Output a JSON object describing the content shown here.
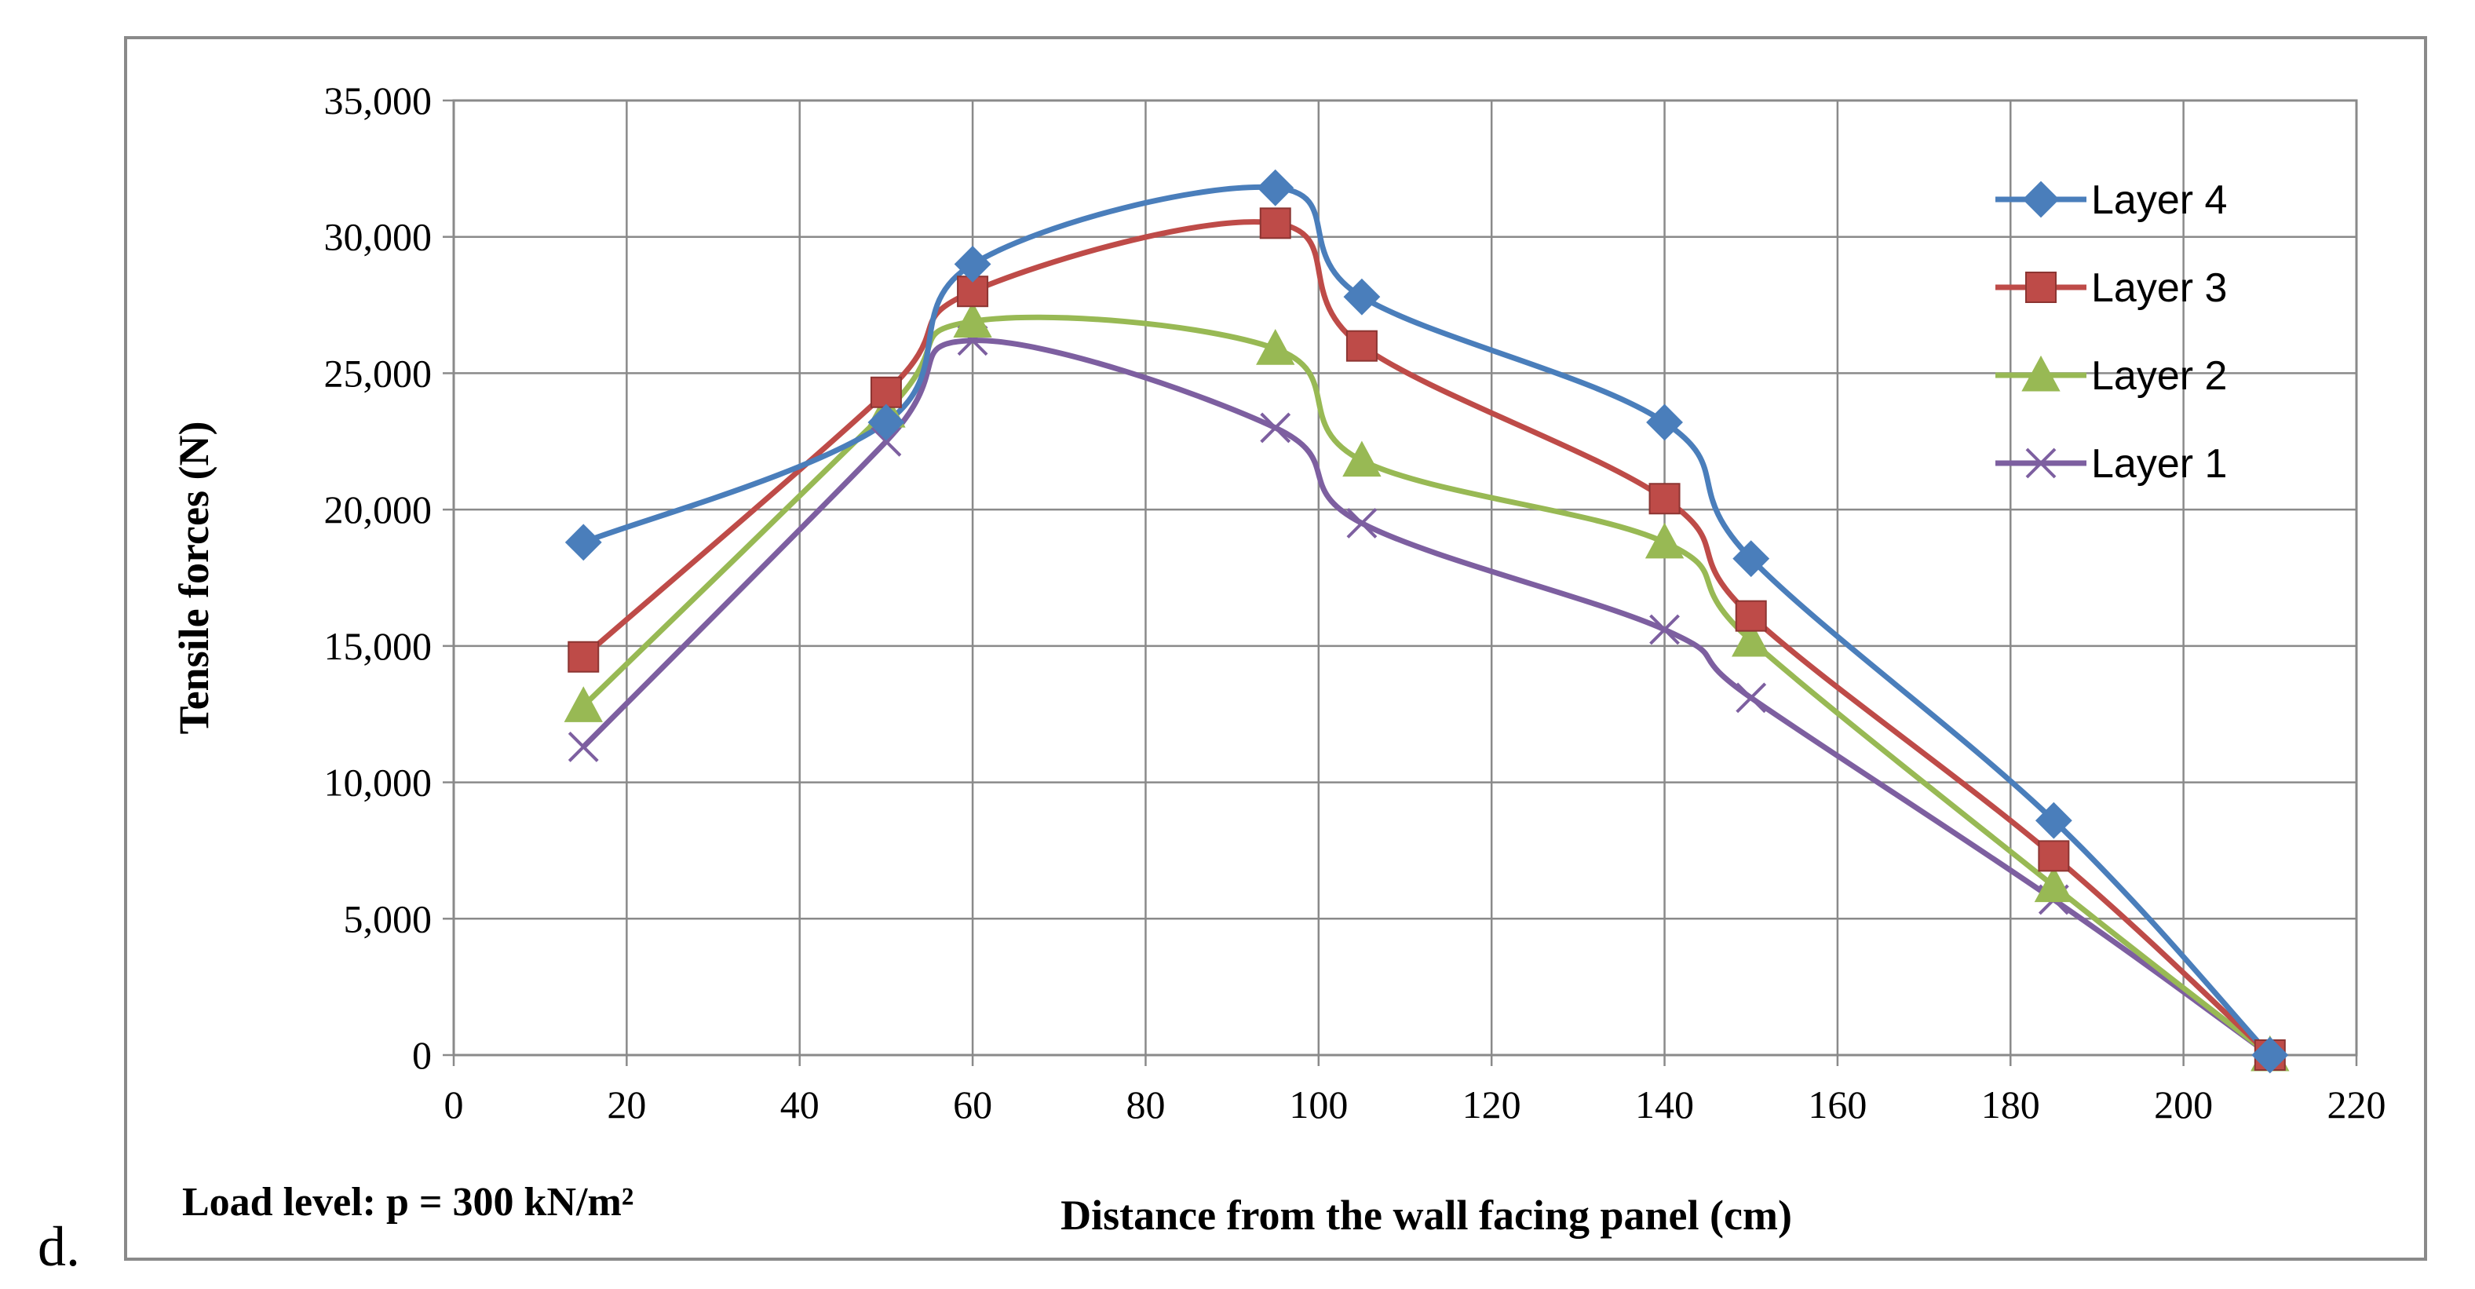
{
  "chart_data": {
    "type": "line",
    "panel_label": "d.",
    "annotation": "Load level: p = 300 kN/m²",
    "xlabel": "Distance from the wall facing panel (cm)",
    "ylabel": "Tensile forces (N)",
    "xlim": [
      0,
      220
    ],
    "ylim": [
      0,
      35000
    ],
    "xticks": [
      0,
      20,
      40,
      60,
      80,
      100,
      120,
      140,
      160,
      180,
      200,
      220
    ],
    "yticks": [
      0,
      5000,
      10000,
      15000,
      20000,
      25000,
      30000,
      35000
    ],
    "ytick_labels": [
      "0",
      "5,000",
      "10,000",
      "15,000",
      "20,000",
      "25,000",
      "30,000",
      "35,000"
    ],
    "grid": true,
    "legend_position": "top-right",
    "x": [
      15,
      50,
      60,
      95,
      105,
      140,
      150,
      185,
      210
    ],
    "series": [
      {
        "name": "Layer 4",
        "color": "#4a7ebb",
        "marker": "diamond",
        "values": [
          18800,
          23200,
          29000,
          31800,
          27800,
          23200,
          18200,
          8600,
          0
        ]
      },
      {
        "name": "Layer 3",
        "color": "#be4b48",
        "marker": "square",
        "values": [
          14600,
          24300,
          28000,
          30500,
          26000,
          20400,
          16100,
          7300,
          0
        ]
      },
      {
        "name": "Layer 2",
        "color": "#98b954",
        "marker": "triangle",
        "values": [
          12800,
          23600,
          26900,
          25900,
          21800,
          18800,
          15200,
          6200,
          0
        ]
      },
      {
        "name": "Layer 1",
        "color": "#7d5fa0",
        "marker": "cross",
        "values": [
          11300,
          22500,
          26200,
          23000,
          19500,
          15600,
          13100,
          5700,
          0
        ]
      }
    ]
  }
}
